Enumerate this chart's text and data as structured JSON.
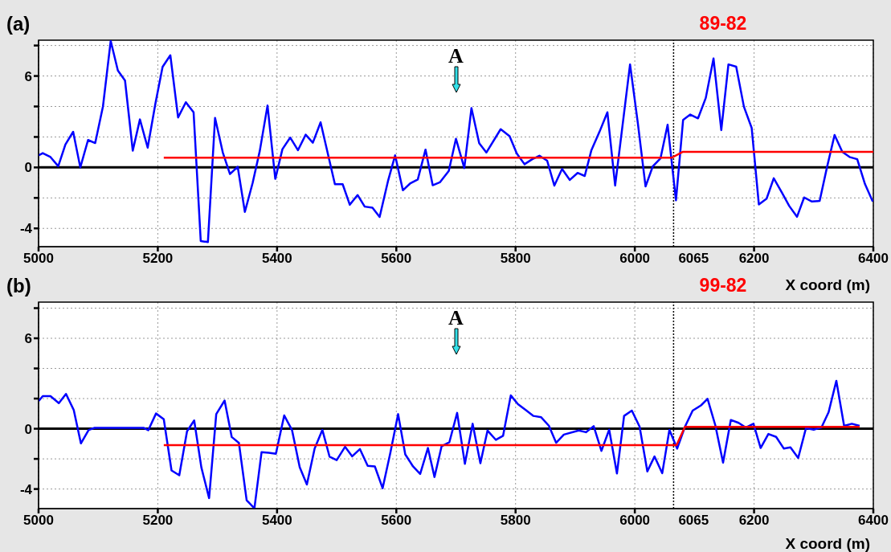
{
  "chart_data": [
    {
      "type": "line",
      "title": "89-82",
      "xlabel": "X coord (m)",
      "annotations": [
        "(a)",
        "A"
      ],
      "xlim": [
        5000,
        6400
      ],
      "xticks": [
        5000,
        5200,
        5400,
        5600,
        5800,
        6000,
        6200,
        6400
      ],
      "ylim": [
        -5.2,
        8.35
      ],
      "yticks": [
        {
          "value": 8,
          "label": null
        },
        6,
        {
          "value": 4,
          "label": null
        },
        {
          "value": 2,
          "label": null
        },
        0,
        {
          "value": -2,
          "label": null
        },
        -4
      ],
      "grid": true,
      "ref_lines": [
        {
          "axis": "y",
          "value": 0,
          "color": "#000000",
          "line_style": "solid"
        },
        {
          "axis": "x",
          "value": 6065,
          "label": "6065",
          "color": "#000000",
          "line_style": "dotted"
        }
      ],
      "series": [
        {
          "color": "#0000ff",
          "x": [
            5000,
            5007,
            5020,
            5033,
            5045,
            5058,
            5070,
            5083,
            5095,
            5108,
            5121,
            5133,
            5145,
            5158,
            5170,
            5183,
            5196,
            5208,
            5221,
            5234,
            5247,
            5260,
            5272,
            5284,
            5296,
            5309,
            5321,
            5334,
            5346,
            5359,
            5371,
            5384,
            5397,
            5409,
            5422,
            5435,
            5448,
            5460,
            5473,
            5497,
            5510,
            5522,
            5535,
            5547,
            5560,
            5572,
            5586,
            5598,
            5611,
            5623,
            5636,
            5649,
            5661,
            5673,
            5688,
            5700,
            5714,
            5726,
            5739,
            5751,
            5775,
            5790,
            5802,
            5815,
            5828,
            5840,
            5853,
            5865,
            5878,
            5891,
            5904,
            5916,
            5927,
            5941,
            5954,
            5967,
            5992,
            6005,
            6018,
            6030,
            6043,
            6055,
            6069,
            6081,
            6093,
            6106,
            6119,
            6132,
            6145,
            6157,
            6170,
            6183,
            6196,
            6208,
            6221,
            6233,
            6247,
            6259,
            6272,
            6284,
            6297,
            6310,
            6322,
            6335,
            6348,
            6361,
            6373,
            6386,
            6399
          ],
          "values": [
            0.79,
            0.94,
            0.68,
            0.08,
            1.5,
            2.34,
            0,
            1.8,
            1.6,
            4.0,
            8.3,
            6.36,
            5.7,
            1.1,
            3.15,
            1.3,
            4.2,
            6.6,
            7.36,
            3.28,
            4.28,
            3.62,
            -4.83,
            -4.9,
            3.25,
            0.98,
            -0.43,
            0.04,
            -2.92,
            -1.02,
            1.08,
            4.06,
            -0.75,
            1.2,
            1.96,
            1.13,
            2.15,
            1.62,
            2.96,
            -1.1,
            -1.1,
            -2.45,
            -1.81,
            -2.57,
            -2.64,
            -3.25,
            -0.9,
            0.79,
            -1.5,
            -1.06,
            -0.79,
            1.17,
            -1.17,
            -0.98,
            -0.23,
            1.88,
            -0.04,
            3.89,
            1.59,
            0.98,
            2.51,
            2.05,
            0.92,
            0.21,
            0.54,
            0.77,
            0.44,
            -1.19,
            -0.1,
            -0.82,
            -0.36,
            -0.56,
            1.11,
            2.36,
            3.62,
            -1.19,
            6.76,
            2.93,
            -1.25,
            0.06,
            0.59,
            2.8,
            -2.16,
            3.12,
            3.47,
            3.22,
            4.56,
            7.15,
            2.45,
            6.76,
            6.61,
            3.98,
            2.59,
            -2.43,
            -2.05,
            -0.71,
            -1.67,
            -2.53,
            -3.24,
            -1.97,
            -2.24,
            -2.2,
            -0.04,
            2.13,
            1.02,
            0.67,
            0.54,
            -1.09,
            -2.24
          ]
        },
        {
          "color": "#ff0000",
          "x": [
            5210,
            6062,
            6080,
            6400
          ],
          "values": [
            0.64,
            0.64,
            1.02,
            1.02
          ]
        }
      ]
    },
    {
      "type": "line",
      "title": "99-82",
      "xlabel": "X coord (m)",
      "annotations": [
        "(b)",
        "A"
      ],
      "xlim": [
        5000,
        6400
      ],
      "xticks": [
        5000,
        5200,
        5400,
        5600,
        5800,
        6000,
        6200,
        6400
      ],
      "ylim": [
        -5.3,
        8.4
      ],
      "yticks": [
        {
          "value": 8,
          "label": null
        },
        6,
        {
          "value": 4,
          "label": null
        },
        {
          "value": 2,
          "label": null
        },
        0,
        {
          "value": -2,
          "label": null
        },
        -4
      ],
      "grid": true,
      "ref_lines": [
        {
          "axis": "y",
          "value": 0,
          "color": "#000000",
          "line_style": "solid"
        },
        {
          "axis": "x",
          "value": 6065,
          "label": "6065",
          "color": "#000000",
          "line_style": "dotted"
        }
      ],
      "series": [
        {
          "color": "#0000ff",
          "x": [
            5000,
            5007,
            5020,
            5034,
            5046,
            5059,
            5071,
            5084,
            5094,
            5176,
            5184,
            5197,
            5210,
            5223,
            5236,
            5249,
            5261,
            5273,
            5286,
            5298,
            5312,
            5324,
            5336,
            5349,
            5362,
            5374,
            5386,
            5398,
            5412,
            5425,
            5438,
            5450,
            5463,
            5476,
            5488,
            5500,
            5514,
            5526,
            5539,
            5552,
            5564,
            5577,
            5590,
            5603,
            5615,
            5628,
            5640,
            5653,
            5664,
            5676,
            5689,
            5702,
            5715,
            5728,
            5741,
            5753,
            5767,
            5779,
            5792,
            5804,
            5817,
            5830,
            5843,
            5856,
            5868,
            5881,
            5906,
            5918,
            5931,
            5944,
            5957,
            5970,
            5982,
            5995,
            6008,
            6021,
            6033,
            6046,
            6058,
            6071,
            6084,
            6097,
            6111,
            6122,
            6135,
            6148,
            6161,
            6174,
            6186,
            6199,
            6211,
            6224,
            6237,
            6250,
            6261,
            6274,
            6287,
            6300,
            6313,
            6325,
            6338,
            6351,
            6364,
            6377
          ],
          "values": [
            1.83,
            2.16,
            2.16,
            1.7,
            2.31,
            1.24,
            -0.97,
            -0.08,
            0.06,
            0.06,
            -0.1,
            1.01,
            0.63,
            -2.77,
            -3.09,
            -0.17,
            0.55,
            -2.56,
            -4.6,
            0.97,
            1.87,
            -0.55,
            -0.94,
            -4.75,
            -5.28,
            -1.55,
            -1.6,
            -1.66,
            0.88,
            -0.08,
            -2.56,
            -3.7,
            -1.32,
            -0.08,
            -1.85,
            -2.08,
            -1.2,
            -1.83,
            -1.35,
            -2.46,
            -2.5,
            -3.95,
            -1.6,
            0.97,
            -1.7,
            -2.5,
            -3.0,
            -1.28,
            -3.2,
            -1.16,
            -0.89,
            1.05,
            -2.33,
            0.33,
            -2.29,
            -0.12,
            -0.74,
            -0.47,
            2.21,
            1.63,
            1.24,
            0.85,
            0.76,
            0.19,
            -0.93,
            -0.39,
            -0.12,
            -0.23,
            0.17,
            -1.47,
            -0.06,
            -2.97,
            0.85,
            1.2,
            0.14,
            -2.83,
            -1.84,
            -2.95,
            -0.08,
            -1.32,
            0.12,
            1.2,
            1.55,
            1.98,
            0.23,
            -2.25,
            0.58,
            0.39,
            0.08,
            0.33,
            -1.28,
            -0.35,
            -0.54,
            -1.32,
            -1.24,
            -1.94,
            0.04,
            -0.06,
            0.08,
            1.1,
            3.18,
            0.19,
            0.33,
            0.19
          ]
        },
        {
          "color": "#ff0000",
          "x": [
            5210,
            6070,
            6084,
            6377
          ],
          "values": [
            -1.09,
            -1.09,
            0.12,
            0.12
          ]
        }
      ]
    }
  ]
}
